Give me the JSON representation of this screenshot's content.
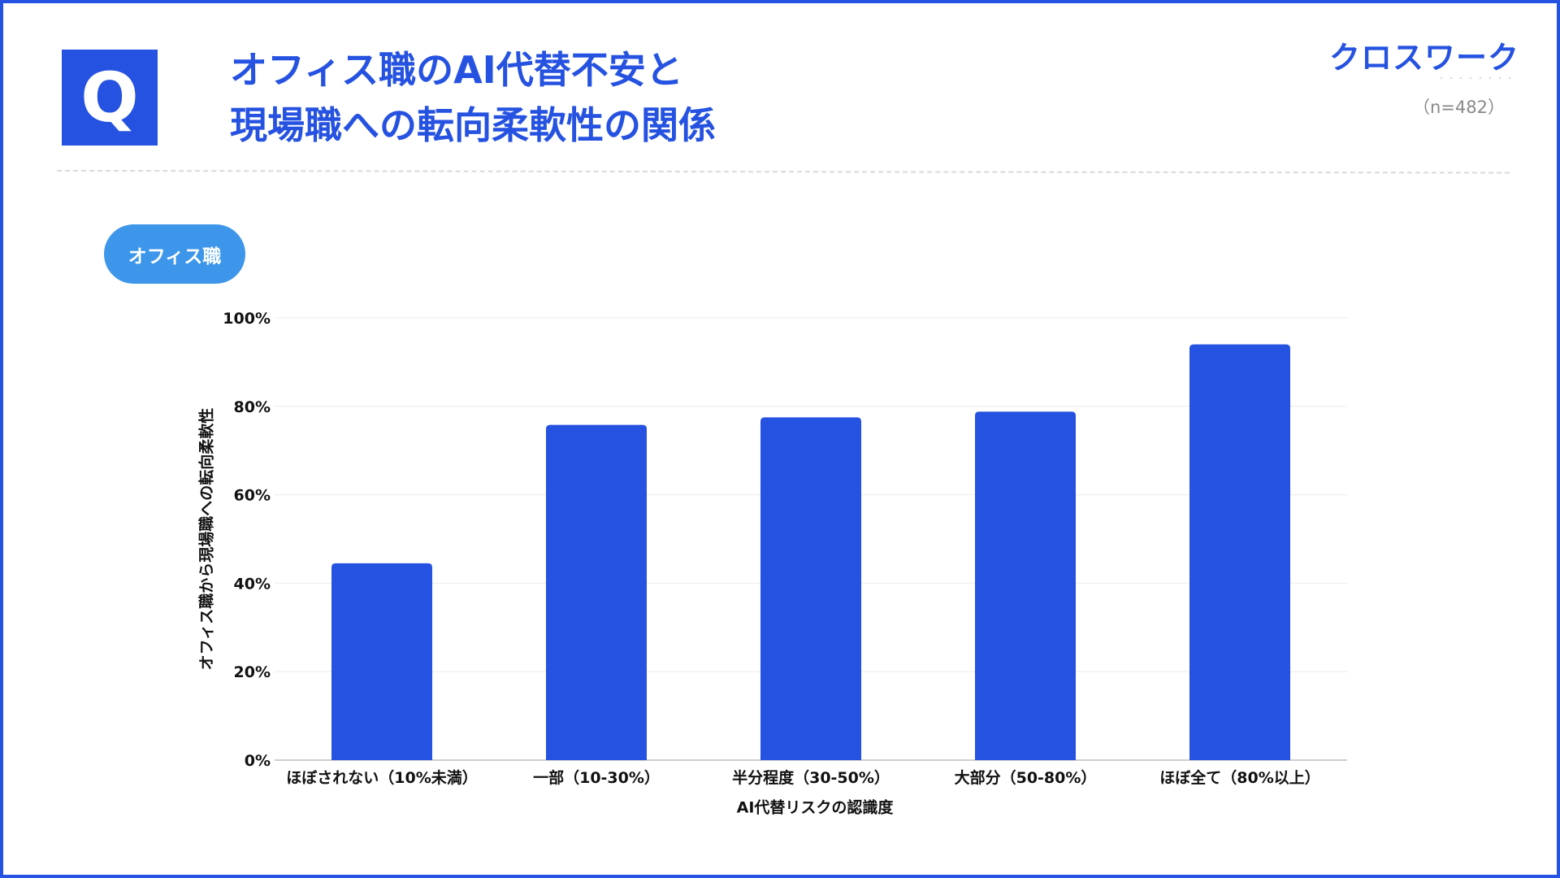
{
  "header": {
    "badge": "Q",
    "title_line1": "オフィス職のAI代替不安と",
    "title_line2": "現場職への転向柔軟性の関係",
    "logo": "クロスワーク",
    "sample_size": "（n=482）"
  },
  "segment_pill": "オフィス職",
  "colors": {
    "accent": "#2552e0",
    "pill": "#3d96ea"
  },
  "chart_data": {
    "type": "bar",
    "categories": [
      "ほぼされない（10%未満）",
      "一部（10-30%）",
      "半分程度（30-50%）",
      "大部分（50-80%）",
      "ほぼ全て（80%以上）"
    ],
    "values": [
      44.5,
      75.8,
      77.5,
      78.8,
      94.0
    ],
    "ylim": [
      0,
      100
    ],
    "yticks": [
      0,
      20,
      40,
      60,
      80,
      100
    ],
    "ytick_labels": [
      "0%",
      "20%",
      "40%",
      "60%",
      "80%",
      "100%"
    ],
    "xlabel": "AI代替リスクの認識度",
    "ylabel": "オフィス職から現場職への転向柔軟性",
    "grid": true,
    "bar_color": "#2552e0"
  }
}
